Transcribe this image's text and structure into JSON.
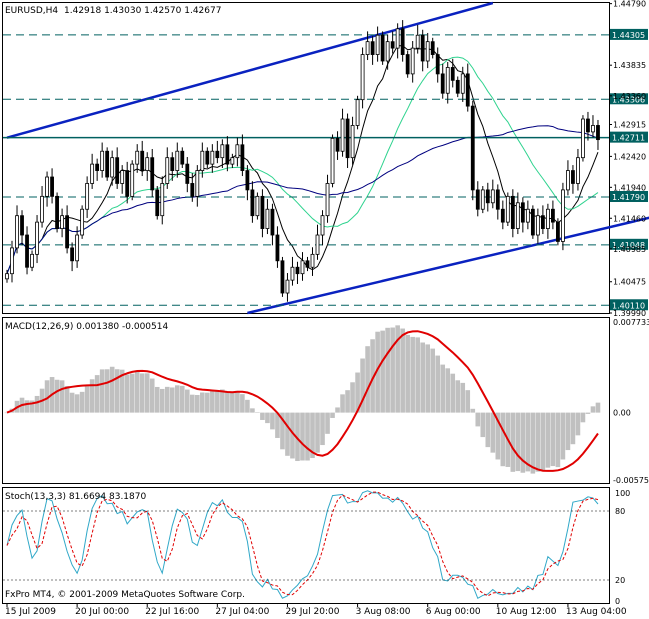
{
  "header": {
    "symbol": "EURUSD,H4",
    "ohlc": "1.42918 1.43030 1.42570 1.42677"
  },
  "copyright": "FxPro MT4, © 2001-2009 MetaQuotes Software Corp.",
  "colors": {
    "candle": "#000000",
    "channel": "#0a22c0",
    "hline": "#006060",
    "ma_fast": "#000000",
    "ma_mid": "#2fd38f",
    "ma_slow": "#00007f",
    "macd_hist": "#c0c0c0",
    "macd_signal": "#e00000",
    "stoch_main": "#30a8c8",
    "stoch_signal": "#e00000",
    "label_bg": "#006060"
  },
  "chart_data": [
    {
      "type": "candlestick",
      "title": "EURUSD,H4",
      "ylim": [
        1.3999,
        1.448
      ],
      "price_axis": [
        "1.44790",
        "1.43835",
        "1.43360",
        "1.42915",
        "1.42420",
        "1.41940",
        "1.41460",
        "1.40985",
        "1.40475",
        "1.39990"
      ],
      "level_labels": [
        "1.44305",
        "1.43306",
        "1.42711",
        "1.41790",
        "1.41048",
        "1.40110"
      ],
      "levels": [
        1.44305,
        1.43306,
        1.42711,
        1.4179,
        1.41048,
        1.4011
      ],
      "time_axis": [
        "15 Jul 2009",
        "20 Jul 00:00",
        "22 Jul 16:00",
        "27 Jul 04:00",
        "29 Jul 20:00",
        "3 Aug 08:00",
        "6 Aug 00:00",
        "10 Aug 12:00",
        "13 Aug 04:00"
      ],
      "trend_channel": {
        "upper": [
          [
            0,
            1.4271
          ],
          [
            97,
            1.448
          ]
        ],
        "lower": [
          [
            48,
            1.3999
          ],
          [
            130,
            1.415
          ]
        ]
      },
      "close": [
        1.406,
        1.41,
        1.415,
        1.412,
        1.407,
        1.409,
        1.414,
        1.418,
        1.421,
        1.418,
        1.413,
        1.415,
        1.41,
        1.408,
        1.412,
        1.416,
        1.42,
        1.423,
        1.422,
        1.425,
        1.421,
        1.424,
        1.42,
        1.422,
        1.418,
        1.423,
        1.425,
        1.422,
        1.424,
        1.419,
        1.415,
        1.42,
        1.424,
        1.422,
        1.425,
        1.423,
        1.42,
        1.418,
        1.422,
        1.425,
        1.423,
        1.425,
        1.424,
        1.426,
        1.423,
        1.424,
        1.426,
        1.422,
        1.419,
        1.415,
        1.418,
        1.413,
        1.416,
        1.412,
        1.408,
        1.403,
        1.405,
        1.407,
        1.406,
        1.408,
        1.407,
        1.409,
        1.412,
        1.415,
        1.42,
        1.427,
        1.425,
        1.43,
        1.424,
        1.429,
        1.433,
        1.44,
        1.442,
        1.44,
        1.443,
        1.439,
        1.442,
        1.441,
        1.444,
        1.44,
        1.437,
        1.441,
        1.443,
        1.439,
        1.442,
        1.44,
        1.437,
        1.434,
        1.438,
        1.436,
        1.434,
        1.437,
        1.432,
        1.419,
        1.416,
        1.419,
        1.417,
        1.419,
        1.416,
        1.414,
        1.418,
        1.413,
        1.417,
        1.414,
        1.416,
        1.412,
        1.415,
        1.413,
        1.416,
        1.414,
        1.411,
        1.419,
        1.422,
        1.42,
        1.424,
        1.43,
        1.428,
        1.429,
        1.4268
      ],
      "moving_averages": [
        "fast",
        "mid",
        "slow"
      ]
    },
    {
      "type": "histogram+line",
      "title": "MACD(12,26,9) 0.001380 -0.000514",
      "ylim": [
        -0.00575,
        0.00773
      ],
      "axis_labels": [
        "0.007733",
        "0.00",
        "-0.005751"
      ]
    },
    {
      "type": "line",
      "title": "Stoch(13,3,3) 81.6694 83.1870",
      "ylim": [
        0,
        100
      ],
      "axis_labels": [
        "100",
        "80",
        "20",
        "0"
      ]
    }
  ]
}
